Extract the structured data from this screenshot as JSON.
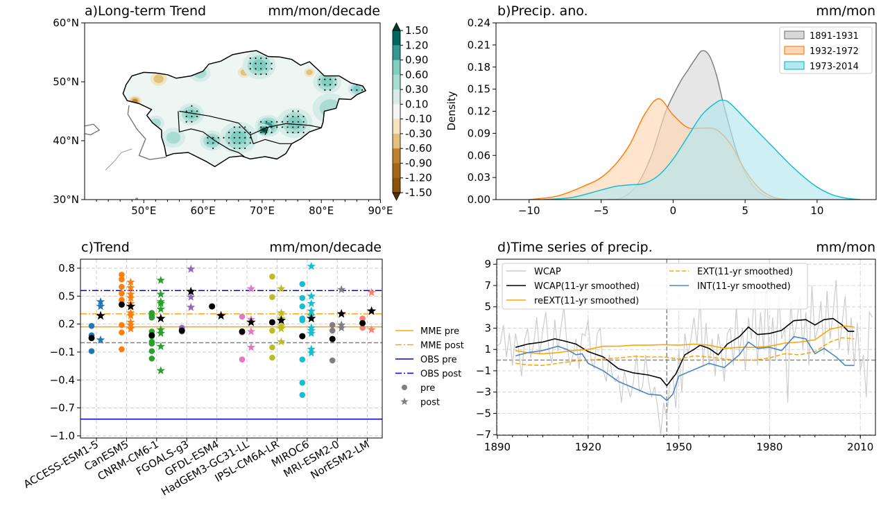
{
  "chart_data": [
    {
      "type": "heatmap",
      "panel": "a",
      "title": "a)Long-term Trend",
      "unit": "mm/mon/decade",
      "x_ticks": [
        "50°E",
        "60°E",
        "70°E",
        "80°E",
        "90°E"
      ],
      "x_tick_values": [
        50,
        60,
        70,
        80,
        90
      ],
      "y_ticks": [
        "60°N",
        "50°N",
        "40°N",
        "30°N"
      ],
      "y_tick_values": [
        60,
        50,
        40,
        30
      ],
      "xlim": [
        40,
        90
      ],
      "ylim": [
        30,
        60
      ],
      "colorbar_levels": [
        "1.50",
        "1.20",
        "0.90",
        "0.60",
        "0.30",
        "0.10",
        "-0.10",
        "-0.30",
        "-0.60",
        "-0.90",
        "-1.20",
        "-1.50"
      ],
      "colorbar_values": [
        1.5,
        1.2,
        0.9,
        0.6,
        0.3,
        0.1,
        -0.1,
        -0.3,
        -0.6,
        -0.9,
        -1.2,
        -1.5
      ],
      "colors": [
        "#543005",
        "#8c510a",
        "#a6661a",
        "#bf812d",
        "#dfc27d",
        "#f3e4bf",
        "#f5f5f5",
        "#d5ece8",
        "#a9dcd3",
        "#80cdc1",
        "#35978f",
        "#01665e",
        "#003c30"
      ],
      "trend_features": [
        {
          "lon": 66,
          "lat": 40.5,
          "value": 0.6,
          "radius_deg": 3.2
        },
        {
          "lon": 75.5,
          "lat": 43,
          "value": 0.6,
          "radius_deg": 3
        },
        {
          "lon": 71,
          "lat": 42.5,
          "value": 0.9,
          "radius_deg": 2.2
        },
        {
          "lon": 70.3,
          "lat": 41.8,
          "value": 1.5,
          "radius_deg": 1.2
        },
        {
          "lon": 58,
          "lat": 44.5,
          "value": 0.6,
          "radius_deg": 2.2
        },
        {
          "lon": 61.5,
          "lat": 40,
          "value": 0.6,
          "radius_deg": 2
        },
        {
          "lon": 55,
          "lat": 40.5,
          "value": 0.3,
          "radius_deg": 2
        },
        {
          "lon": 69.5,
          "lat": 52.8,
          "value": 0.6,
          "radius_deg": 2.8
        },
        {
          "lon": 81,
          "lat": 50,
          "value": 0.6,
          "radius_deg": 2.4
        },
        {
          "lon": 81.5,
          "lat": 45.5,
          "value": 0.3,
          "radius_deg": 3
        },
        {
          "lon": 86,
          "lat": 48.8,
          "value": 0.6,
          "radius_deg": 1.5
        },
        {
          "lon": 59.5,
          "lat": 51.5,
          "value": 0.3,
          "radius_deg": 1.8
        },
        {
          "lon": 52.5,
          "lat": 50.5,
          "value": -0.3,
          "radius_deg": 1.4
        },
        {
          "lon": 48.5,
          "lat": 46.7,
          "value": -0.6,
          "radius_deg": 1.1
        },
        {
          "lon": 67,
          "lat": 51.6,
          "value": -0.3,
          "radius_deg": 1.1
        },
        {
          "lon": 78,
          "lat": 51.6,
          "value": -0.3,
          "radius_deg": 0.9
        },
        {
          "lon": 52,
          "lat": 43,
          "value": 0.3,
          "radius_deg": 1.5
        }
      ]
    },
    {
      "type": "area",
      "panel": "b",
      "title": "b)Precip. ano.",
      "unit": "mm/mon",
      "ylabel": "Density",
      "xlim": [
        -12.3,
        14.1
      ],
      "ylim": [
        0,
        0.24
      ],
      "x_ticks": [
        -10,
        -5,
        0,
        5,
        10
      ],
      "x_tick_labels": [
        "−10",
        "−5",
        "0",
        "5",
        "10"
      ],
      "y_ticks": [
        "0.00",
        "0.03",
        "0.06",
        "0.09",
        "0.12",
        "0.15",
        "0.18",
        "0.21",
        "0.24"
      ],
      "legend_position": "top-right",
      "series": [
        {
          "name": "1891-1931",
          "color": "#808080",
          "fill": "#d9d9d9",
          "x": [
            -4.5,
            -3.5,
            -2.5,
            -1.5,
            -0.5,
            0.5,
            1.0,
            1.5,
            2.0,
            2.5,
            3.0,
            3.5,
            4.5,
            5.5,
            6.5,
            7.5
          ],
          "y": [
            0,
            0.003,
            0.02,
            0.06,
            0.12,
            0.16,
            0.175,
            0.19,
            0.202,
            0.196,
            0.17,
            0.13,
            0.06,
            0.02,
            0.004,
            0
          ]
        },
        {
          "name": "1932-1972",
          "color": "#ff7f0e",
          "fill": "#ffd6b3",
          "x": [
            -10,
            -8,
            -6,
            -5,
            -4,
            -3,
            -2,
            -1,
            0,
            1,
            2,
            3,
            4,
            5,
            6,
            7,
            8
          ],
          "y": [
            0,
            0.005,
            0.02,
            0.03,
            0.048,
            0.075,
            0.115,
            0.137,
            0.115,
            0.098,
            0.097,
            0.095,
            0.075,
            0.04,
            0.015,
            0.003,
            0
          ]
        },
        {
          "name": "1973-2014",
          "color": "#17becf",
          "fill": "#b3e8ef",
          "x": [
            -9,
            -7,
            -5,
            -4,
            -3,
            -2,
            -1,
            0,
            1,
            2,
            3,
            3.5,
            4,
            5,
            6,
            7,
            8,
            9,
            10,
            11,
            12,
            13
          ],
          "y": [
            0,
            0.003,
            0.013,
            0.018,
            0.02,
            0.022,
            0.033,
            0.055,
            0.085,
            0.115,
            0.132,
            0.135,
            0.13,
            0.11,
            0.09,
            0.07,
            0.05,
            0.032,
            0.017,
            0.007,
            0.002,
            0
          ]
        }
      ]
    },
    {
      "type": "scatter",
      "panel": "c",
      "title": "c)Trend",
      "unit": "mm/mon/decade",
      "ylim": [
        -1.02,
        0.9
      ],
      "y_ticks": [
        0.8,
        0.5,
        0.2,
        -0.1,
        -0.4,
        -0.7,
        -1.0
      ],
      "y_tick_labels": [
        "0.8",
        "0.5",
        "0.2",
        "−0.1",
        "−0.4",
        "−0.7",
        "−1.0"
      ],
      "reference_lines": [
        {
          "name": "MME pre",
          "value": 0.17,
          "color": "#ffa500",
          "style": "solid"
        },
        {
          "name": "MME post",
          "value": 0.31,
          "color": "#ffa500",
          "style": "dashdot"
        },
        {
          "name": "OBS pre",
          "value": -0.82,
          "color": "#0000ee",
          "style": "solid"
        },
        {
          "name": "OBS post",
          "value": 0.56,
          "color": "#0000ee",
          "style": "dashdot"
        },
        {
          "name": "",
          "value": 0.0,
          "color": "#808080",
          "style": "dashed"
        }
      ],
      "legend": [
        {
          "label": "MME pre",
          "kind": "line",
          "color": "#ffa500",
          "style": "solid"
        },
        {
          "label": "MME post",
          "kind": "line",
          "color": "#ffa500",
          "style": "dashdot"
        },
        {
          "label": "OBS pre",
          "kind": "line",
          "color": "#0000ee",
          "style": "solid"
        },
        {
          "label": "OBS post",
          "kind": "line",
          "color": "#0000ee",
          "style": "dashdot"
        },
        {
          "label": "pre",
          "kind": "circle",
          "color": "#808080"
        },
        {
          "label": "post",
          "kind": "star",
          "color": "#808080"
        }
      ],
      "models": [
        {
          "name": "ACCESS-ESM1-5",
          "color": "#1f77b4",
          "pre": [
            0.18,
            0.08,
            -0.09
          ],
          "pre_mean": 0.05,
          "post": [
            0.44,
            0.39,
            0.03
          ],
          "post_mean": 0.29
        },
        {
          "name": "CanESM5",
          "color": "#ff7f0e",
          "pre": [
            0.73,
            0.68,
            0.6,
            0.53,
            0.46,
            0.19,
            0.11,
            -0.07
          ],
          "pre_mean": 0.41,
          "post": [
            0.65,
            0.59,
            0.52,
            0.48,
            0.42,
            0.32,
            0.29,
            0.22,
            0.19,
            0.15
          ],
          "post_mean": 0.39
        },
        {
          "name": "CNRM-CM6-1",
          "color": "#2ca02c",
          "pre": [
            0.32,
            0.29,
            0.27,
            0.12,
            0.07,
            0.01,
            -0.01,
            -0.09,
            -0.17
          ],
          "pre_mean": 0.08,
          "post": [
            0.67,
            0.52,
            0.44,
            0.42,
            0.36,
            0.14,
            0.1,
            -0.04,
            -0.3
          ],
          "post_mean": 0.26
        },
        {
          "name": "FGOALS-g3",
          "color": "#9467bd",
          "pre": [
            0.16,
            0.12
          ],
          "pre_mean": 0.13,
          "post": [
            0.79,
            0.49,
            0.38
          ],
          "post_mean": 0.55
        },
        {
          "name": "GFDL-ESM4",
          "color": "#d62728",
          "pre": [],
          "pre_mean": 0.39,
          "post": [],
          "post_mean": 0.29
        },
        {
          "name": "HadGEM3-GC31-LL",
          "color": "#e377c2",
          "pre": [
            0.28,
            0.11,
            -0.18
          ],
          "pre_mean": 0.12,
          "post": [
            0.58,
            0.25,
            0.12,
            -0.05
          ],
          "post_mean": 0.22
        },
        {
          "name": "IPSL-CM6A-LR",
          "color": "#bcbd22",
          "pre": [
            0.71,
            0.49,
            0.13,
            -0.05,
            -0.16
          ],
          "pre_mean": 0.22,
          "post": [
            0.58,
            0.32,
            0.26,
            0.18,
            0.15,
            0.01
          ],
          "post_mean": 0.24
        },
        {
          "name": "MIROC6",
          "color": "#17becf",
          "pre": [
            0.63,
            0.48,
            0.39,
            0.26,
            0.24,
            -0.18,
            -0.43,
            -0.56
          ],
          "pre_mean": 0.07,
          "post": [
            0.82,
            0.5,
            0.42,
            0.34,
            0.29,
            0.16,
            0.13,
            0.1,
            -0.07,
            -0.11
          ],
          "post_mean": 0.26
        },
        {
          "name": "MRI-ESM2-0",
          "color": "#7f7f7f",
          "pre": [
            0.19,
            0.13,
            -0.19
          ],
          "pre_mean": 0.04,
          "post": [
            0.57,
            0.19,
            0.16
          ],
          "post_mean": 0.31
        },
        {
          "name": "NorESM2-LM",
          "color": "#fa8072",
          "pre": [
            0.26,
            0.16
          ],
          "pre_mean": 0.21,
          "post": [
            0.54,
            0.14
          ],
          "post_mean": 0.34
        }
      ]
    },
    {
      "type": "line",
      "panel": "d",
      "title": "d)Time series of precip.",
      "unit": "mm/mon",
      "xlim": [
        1890,
        2015
      ],
      "ylim": [
        -7.05,
        9.45
      ],
      "x_ticks": [
        1890,
        1920,
        1950,
        1980,
        2010
      ],
      "y_ticks": [
        9,
        7,
        5,
        3,
        1,
        -1,
        -3,
        -5,
        -7
      ],
      "y_tick_labels": [
        "9",
        "7",
        "5",
        "3",
        "1",
        "−1",
        "−3",
        "−5",
        "−7"
      ],
      "reference_lines": {
        "horizontal_y": 0,
        "vertical_year": 1946
      },
      "series": [
        {
          "name": "WCAP",
          "color": "#cccccc",
          "style": "solid",
          "x_start": 1890,
          "values": [
            1.3,
            1.6,
            3.3,
            0.3,
            2.5,
            -0.5,
            2.5,
            1.0,
            -1.5,
            1.8,
            3.0,
            0.2,
            1.5,
            4.0,
            0.5,
            2.8,
            4.5,
            1.0,
            -0.3,
            3.8,
            0.8,
            3.0,
            5.0,
            1.5,
            -0.5,
            0.5,
            2.0,
            -0.8,
            2.5,
            2.3,
            3.8,
            0.0,
            -0.8,
            2.5,
            3.0,
            -1.0,
            -2.0,
            0.5,
            -1.5,
            -2.0,
            -1.5,
            -4.0,
            -1.0,
            -2.5,
            -3.5,
            -2.0,
            0.5,
            -3.0,
            -2.5,
            0.5,
            -2.0,
            -3.5,
            -2.5,
            -4.5,
            -7.0,
            -4.0,
            -5.5,
            -2.0,
            -1.5,
            -4.5,
            1.0,
            -3.0,
            2.5,
            0.5,
            2.0,
            4.0,
            1.5,
            5.8,
            -0.5,
            3.5,
            -0.5,
            2.0,
            -1.5,
            2.5,
            0.8,
            -2.0,
            2.5,
            3.0,
            -0.5,
            5.0,
            0.5,
            3.0,
            -1.0,
            4.0,
            2.0,
            6.5,
            -0.5,
            4.5,
            1.0,
            7.5,
            -1.0,
            4.0,
            0.0,
            6.0,
            2.0,
            3.0,
            -4.0,
            5.5,
            2.0,
            3.5,
            6.0,
            1.0,
            4.5,
            -0.5,
            7.0,
            2.0,
            3.0,
            5.5,
            0.5,
            6.5,
            2.0,
            4.5,
            7.5,
            1.0,
            3.5,
            6.0,
            0.5,
            4.0,
            -0.5,
            3.5,
            -1.0,
            0.5,
            -3.5,
            4.5,
            4.0
          ]
        },
        {
          "name": "WCAP(11-yr smoothed)",
          "color": "#000000",
          "style": "solid",
          "x": [
            1896,
            1900,
            1905,
            1909,
            1912,
            1916,
            1920,
            1925,
            1930,
            1935,
            1940,
            1944,
            1946,
            1949,
            1952,
            1955,
            1957,
            1960,
            1963,
            1966,
            1970,
            1973,
            1976,
            1980,
            1984,
            1988,
            1992,
            1995,
            1998,
            2001,
            2004,
            2006,
            2008
          ],
          "y": [
            1.2,
            1.5,
            1.7,
            2.0,
            1.8,
            1.5,
            0.8,
            0.3,
            -0.8,
            -1.2,
            -1.4,
            -1.7,
            -2.4,
            -1.3,
            0.5,
            1.0,
            1.4,
            1.1,
            0.5,
            1.5,
            2.2,
            3.1,
            2.4,
            2.5,
            2.8,
            3.7,
            3.8,
            3.3,
            3.8,
            3.9,
            3.3,
            2.7,
            2.7
          ]
        },
        {
          "name": "reEXT(11-yr smoothed)",
          "color": "#ffa500",
          "style": "solid",
          "x": [
            1896,
            1900,
            1905,
            1910,
            1915,
            1920,
            1925,
            1930,
            1935,
            1940,
            1945,
            1950,
            1955,
            1960,
            1965,
            1970,
            1975,
            1980,
            1985,
            1990,
            1995,
            2000,
            2005,
            2008
          ],
          "y": [
            0.9,
            0.7,
            0.6,
            0.7,
            0.9,
            1.0,
            1.3,
            1.3,
            1.4,
            1.4,
            1.45,
            1.4,
            1.5,
            1.4,
            1.1,
            1.2,
            1.2,
            1.3,
            1.6,
            1.7,
            1.9,
            2.9,
            3.2,
            3.1
          ]
        },
        {
          "name": "EXT(11-yr smoothed)",
          "color": "#ffa500",
          "style": "dashed",
          "x": [
            1896,
            1900,
            1905,
            1910,
            1915,
            1920,
            1925,
            1930,
            1935,
            1940,
            1945,
            1950,
            1955,
            1960,
            1965,
            1970,
            1975,
            1980,
            1985,
            1990,
            1995,
            2000,
            2004,
            2008
          ],
          "y": [
            -0.3,
            -0.45,
            -0.5,
            -0.3,
            -0.1,
            0.0,
            0.1,
            0.2,
            0.35,
            0.3,
            0.3,
            0.1,
            0.4,
            0.3,
            0.1,
            0.0,
            0.0,
            0.2,
            0.6,
            0.5,
            0.8,
            1.7,
            2.1,
            2.0
          ]
        },
        {
          "name": "INT(11-yr smoothed)",
          "color": "#4a86c5",
          "style": "solid",
          "x": [
            1896,
            1900,
            1905,
            1910,
            1913,
            1916,
            1918,
            1920,
            1925,
            1930,
            1935,
            1940,
            1944,
            1946,
            1948,
            1950,
            1955,
            1960,
            1965,
            1970,
            1973,
            1976,
            1980,
            1984,
            1988,
            1992,
            1995,
            1998,
            2002,
            2005,
            2008
          ],
          "y": [
            0.4,
            0.7,
            0.9,
            1.3,
            1.0,
            0.5,
            0.6,
            -0.3,
            -1.0,
            -2.0,
            -2.6,
            -3.2,
            -3.3,
            -3.8,
            -3.2,
            -1.5,
            -0.9,
            -0.3,
            -0.7,
            0.5,
            1.7,
            1.1,
            1.2,
            0.9,
            2.2,
            2.0,
            0.6,
            1.1,
            0.3,
            -0.5,
            -0.5
          ]
        }
      ]
    }
  ]
}
